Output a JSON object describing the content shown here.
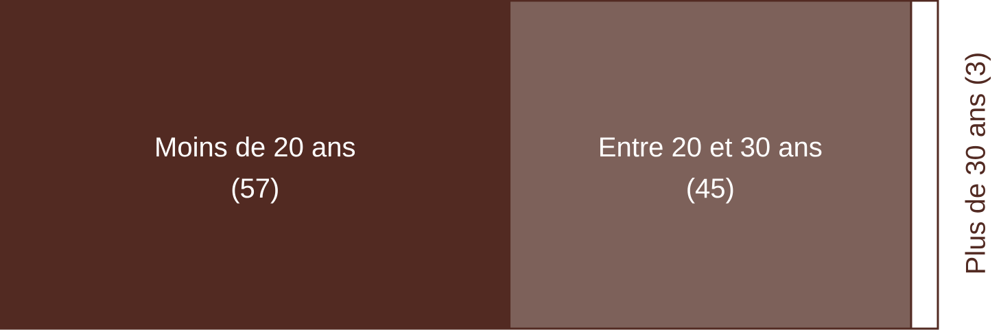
{
  "chart_data": {
    "type": "bar",
    "orientation": "horizontal-stacked-100",
    "title": "",
    "xlabel": "",
    "ylabel": "",
    "legend": "none",
    "grid": false,
    "unit": "",
    "total": 105,
    "categories": [
      "Moins de 20 ans",
      "Entre 20 et 30 ans",
      "Plus de 30 ans"
    ],
    "values": [
      57,
      45,
      3
    ],
    "value_labels": [
      "(57)",
      "(45)",
      "(3)"
    ],
    "colors": [
      "#522a22",
      "#7d615a",
      "#ffffff"
    ],
    "border_color": "#522a22",
    "label_colors": [
      "#ffffff",
      "#ffffff",
      "#522a22"
    ]
  }
}
